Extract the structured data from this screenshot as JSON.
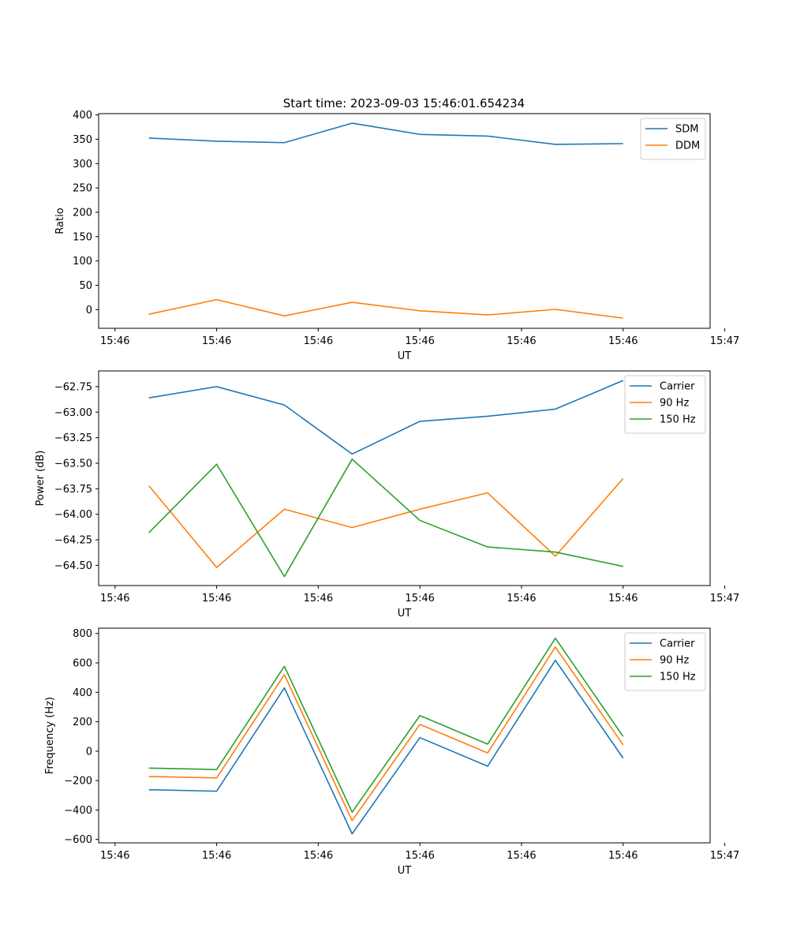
{
  "figure_title": "Start time: 2023-09-03 15:46:01.654234",
  "colors": {
    "blue": "#1f77b4",
    "orange": "#ff7f0e",
    "green": "#2ca02c"
  },
  "chart_data": [
    {
      "type": "line",
      "title": "Start time: 2023-09-03 15:46:01.654234",
      "xlabel": "UT",
      "ylabel": "Ratio",
      "x": [
        0,
        1,
        2,
        3,
        4,
        5,
        6,
        7
      ],
      "xlim": [
        -0.742,
        8.284
      ],
      "x_ticks": [
        -0.5,
        1,
        2.5,
        4,
        5.5,
        7,
        8.5
      ],
      "x_tick_labels": [
        "15:46",
        "15:46",
        "15:46",
        "15:46",
        "15:46",
        "15:46",
        "15:47"
      ],
      "ylim": [
        -38.4,
        402.6
      ],
      "y_ticks": [
        0,
        50,
        100,
        150,
        200,
        250,
        300,
        350,
        400
      ],
      "y_tick_labels": [
        "0",
        "50",
        "100",
        "150",
        "200",
        "250",
        "300",
        "350",
        "400"
      ],
      "legend_position": "top-right",
      "series": [
        {
          "name": "SDM",
          "color": "#1f77b4",
          "values": [
            352.5,
            346.0,
            343.0,
            383.0,
            360.0,
            356.5,
            339.5,
            341.0
          ]
        },
        {
          "name": "DDM",
          "color": "#ff7f0e",
          "values": [
            -9.5,
            20.5,
            -13.0,
            15.0,
            -2.5,
            -11.0,
            0.5,
            -17.5
          ]
        }
      ]
    },
    {
      "type": "line",
      "title": "",
      "xlabel": "UT",
      "ylabel": "Power (dB)",
      "x": [
        0,
        1,
        2,
        3,
        4,
        5,
        6,
        7
      ],
      "xlim": [
        -0.742,
        8.284
      ],
      "x_ticks": [
        -0.5,
        1,
        2.5,
        4,
        5.5,
        7,
        8.5
      ],
      "x_tick_labels": [
        "15:46",
        "15:46",
        "15:46",
        "15:46",
        "15:46",
        "15:46",
        "15:47"
      ],
      "ylim": [
        -64.698,
        -62.596
      ],
      "y_ticks": [
        -64.5,
        -64.25,
        -64.0,
        -63.75,
        -63.5,
        -63.25,
        -63.0,
        -62.75
      ],
      "y_tick_labels": [
        "−64.50",
        "−64.25",
        "−64.00",
        "−63.75",
        "−63.50",
        "−63.25",
        "−63.00",
        "−62.75"
      ],
      "legend_position": "top-right",
      "series": [
        {
          "name": "Carrier",
          "color": "#1f77b4",
          "values": [
            -62.86,
            -62.75,
            -62.93,
            -63.41,
            -63.09,
            -63.04,
            -62.97,
            -62.69
          ]
        },
        {
          "name": "90 Hz",
          "color": "#ff7f0e",
          "values": [
            -63.72,
            -64.52,
            -63.95,
            -64.13,
            -63.95,
            -63.79,
            -64.41,
            -63.65
          ]
        },
        {
          "name": "150 Hz",
          "color": "#2ca02c",
          "values": [
            -64.18,
            -63.51,
            -64.61,
            -63.46,
            -64.06,
            -64.32,
            -64.37,
            -64.51
          ]
        }
      ]
    },
    {
      "type": "line",
      "title": "",
      "xlabel": "UT",
      "ylabel": "Frequency (Hz)",
      "x": [
        0,
        1,
        2,
        3,
        4,
        5,
        6,
        7
      ],
      "xlim": [
        -0.742,
        8.284
      ],
      "x_ticks": [
        -0.5,
        1,
        2.5,
        4,
        5.5,
        7,
        8.5
      ],
      "x_tick_labels": [
        "15:46",
        "15:46",
        "15:46",
        "15:46",
        "15:46",
        "15:46",
        "15:47"
      ],
      "ylim": [
        -623,
        836
      ],
      "y_ticks": [
        -600,
        -400,
        -200,
        0,
        200,
        400,
        600,
        800
      ],
      "y_tick_labels": [
        "−600",
        "−400",
        "−200",
        "0",
        "200",
        "400",
        "600",
        "800"
      ],
      "legend_position": "top-right",
      "series": [
        {
          "name": "Carrier",
          "color": "#1f77b4",
          "values": [
            -262,
            -272,
            430,
            -562,
            92,
            -102,
            618,
            -47
          ]
        },
        {
          "name": "90 Hz",
          "color": "#ff7f0e",
          "values": [
            -172,
            -182,
            520,
            -472,
            182,
            -12,
            708,
            43
          ]
        },
        {
          "name": "150 Hz",
          "color": "#2ca02c",
          "values": [
            -115,
            -125,
            577,
            -415,
            242,
            48,
            768,
            100
          ]
        }
      ]
    }
  ]
}
